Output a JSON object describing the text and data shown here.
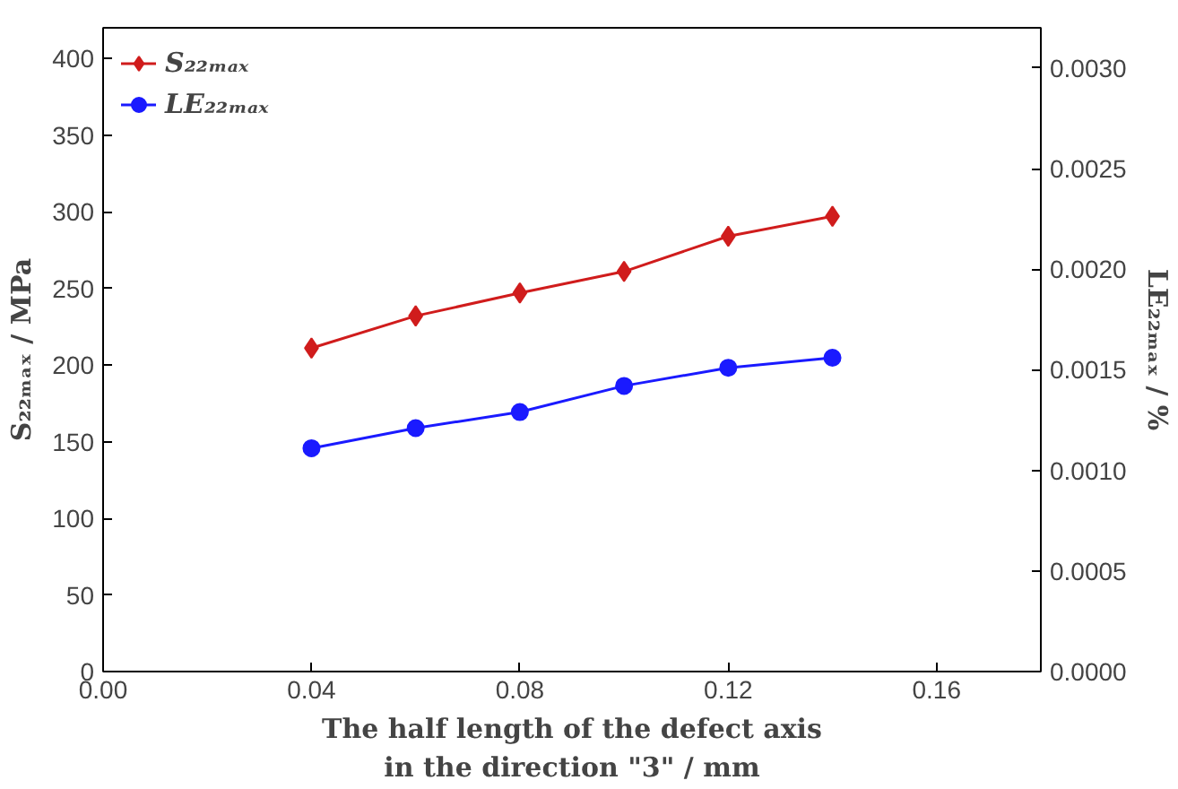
{
  "chart_data": {
    "type": "line",
    "xlabel": "The half length of the defect axis\nin the direction \"3\" / mm",
    "ylabel": "S₂₂ₘₐₓ / MPa",
    "y2label": "LE₂₂ₘₐₓ / %",
    "x": [
      0.04,
      0.06,
      0.08,
      0.1,
      0.12,
      0.14
    ],
    "series": [
      {
        "name": "S₂₂ₘₐₓ",
        "color": "#d01c1c",
        "marker": "diamond",
        "values": [
          211,
          232,
          247,
          261,
          284,
          297
        ]
      },
      {
        "name": "LE₂₂ₘₐₓ",
        "color": "#1a1aff",
        "marker": "circle",
        "axis": "y2",
        "values": [
          0.00111,
          0.00121,
          0.00129,
          0.00142,
          0.00151,
          0.00156
        ]
      }
    ],
    "xlim": [
      0,
      0.18
    ],
    "xticks": [
      {
        "value": 0,
        "label": "0.00"
      },
      0.04,
      0.08,
      0.12,
      0.16
    ],
    "ylim": [
      0,
      420
    ],
    "yticks": [
      0,
      50,
      100,
      150,
      200,
      250,
      300,
      350,
      400
    ],
    "y2lim": [
      0,
      0.0032
    ],
    "y2ticks": [
      {
        "value": 0,
        "label": "0.0000"
      },
      {
        "value": 0.0005,
        "label": "0.0005"
      },
      {
        "value": 0.001,
        "label": "0.0010"
      },
      {
        "value": 0.0015,
        "label": "0.0015"
      },
      {
        "value": 0.002,
        "label": "0.0020"
      },
      {
        "value": 0.0025,
        "label": "0.0025"
      },
      {
        "value": 0.003,
        "label": "0.0030"
      }
    ],
    "grid": false,
    "legend": "top left"
  }
}
